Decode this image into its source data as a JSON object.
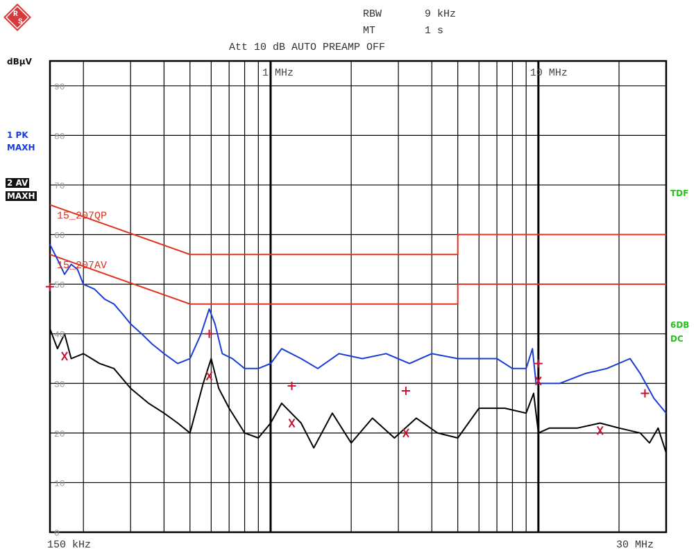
{
  "header": {
    "rbw_label": "RBW",
    "rbw_value": "9 kHz",
    "mt_label": "MT",
    "mt_value": "1 s",
    "att_line": "Att 10 dB AUTO  PREAMP OFF"
  },
  "left_labels": {
    "unit": "dBµV",
    "trace1_line1": "1 PK",
    "trace1_line2": "MAXH",
    "trace2_line1": "2 AV",
    "trace2_line2": "MAXH"
  },
  "right_labels": {
    "tdf": "TDF",
    "sixdb": "6DB",
    "dc": "DC"
  },
  "colors": {
    "peak_trace": "#1a3bd6",
    "avg_trace": "#000000",
    "limits": "#e0301e",
    "markers": "#c8102e",
    "right_labels": "#27c21a"
  },
  "chart_data": {
    "type": "line",
    "x_scale": "log",
    "xlim_hz": [
      150000,
      30000000
    ],
    "ylim": [
      0,
      95
    ],
    "y_ticks": [
      0,
      10,
      20,
      30,
      40,
      50,
      60,
      70,
      80,
      90
    ],
    "y_tick_labels": [
      "0",
      "10",
      "20",
      "30",
      "40",
      "50",
      "60",
      "70",
      "80",
      "90"
    ],
    "x_tick_labels": [
      {
        "hz": 1000000,
        "label": "1 MHz"
      },
      {
        "hz": 10000000,
        "label": "10 MHz"
      }
    ],
    "x_start_label": "150 kHz",
    "x_end_label": "30 MHz",
    "grid": true,
    "limit_lines": [
      {
        "name": "15_207QP",
        "points": [
          [
            150000,
            66
          ],
          [
            500000,
            56
          ],
          [
            5000000,
            56
          ],
          [
            5000000,
            60
          ],
          [
            30000000,
            60
          ]
        ]
      },
      {
        "name": "15_207AV",
        "points": [
          [
            150000,
            56
          ],
          [
            500000,
            46
          ],
          [
            5000000,
            46
          ],
          [
            5000000,
            50
          ],
          [
            30000000,
            50
          ]
        ]
      }
    ],
    "series": [
      {
        "name": "1 PK MAXH",
        "color": "#1a3bd6",
        "points": [
          [
            150000,
            58
          ],
          [
            160000,
            55
          ],
          [
            170000,
            52
          ],
          [
            180000,
            54
          ],
          [
            190000,
            53
          ],
          [
            200000,
            50
          ],
          [
            220000,
            49
          ],
          [
            240000,
            47
          ],
          [
            260000,
            46
          ],
          [
            280000,
            44
          ],
          [
            300000,
            42
          ],
          [
            330000,
            40
          ],
          [
            360000,
            38
          ],
          [
            400000,
            36
          ],
          [
            450000,
            34
          ],
          [
            500000,
            35
          ],
          [
            550000,
            40
          ],
          [
            590000,
            45
          ],
          [
            620000,
            42
          ],
          [
            660000,
            36
          ],
          [
            720000,
            35
          ],
          [
            800000,
            33
          ],
          [
            900000,
            33
          ],
          [
            1000000,
            34
          ],
          [
            1100000,
            37
          ],
          [
            1300000,
            35
          ],
          [
            1500000,
            33
          ],
          [
            1800000,
            36
          ],
          [
            2200000,
            35
          ],
          [
            2700000,
            36
          ],
          [
            3300000,
            34
          ],
          [
            4000000,
            36
          ],
          [
            5000000,
            35
          ],
          [
            6000000,
            35
          ],
          [
            7000000,
            35
          ],
          [
            8000000,
            33
          ],
          [
            9000000,
            33
          ],
          [
            9500000,
            37
          ],
          [
            9800000,
            30
          ],
          [
            10500000,
            30
          ],
          [
            12000000,
            30
          ],
          [
            15000000,
            32
          ],
          [
            18000000,
            33
          ],
          [
            22000000,
            35
          ],
          [
            24000000,
            32
          ],
          [
            27000000,
            27
          ],
          [
            30000000,
            24
          ]
        ]
      },
      {
        "name": "2 AV MAXH",
        "color": "#000000",
        "points": [
          [
            150000,
            41
          ],
          [
            160000,
            37
          ],
          [
            170000,
            40
          ],
          [
            180000,
            35
          ],
          [
            200000,
            36
          ],
          [
            230000,
            34
          ],
          [
            260000,
            33
          ],
          [
            300000,
            29
          ],
          [
            350000,
            26
          ],
          [
            400000,
            24
          ],
          [
            450000,
            22
          ],
          [
            500000,
            20
          ],
          [
            560000,
            30
          ],
          [
            600000,
            35
          ],
          [
            640000,
            29
          ],
          [
            700000,
            25
          ],
          [
            800000,
            20
          ],
          [
            900000,
            19
          ],
          [
            1000000,
            22
          ],
          [
            1100000,
            26
          ],
          [
            1300000,
            22
          ],
          [
            1450000,
            17
          ],
          [
            1700000,
            24
          ],
          [
            2000000,
            18
          ],
          [
            2400000,
            23
          ],
          [
            2900000,
            19
          ],
          [
            3500000,
            23
          ],
          [
            4200000,
            20
          ],
          [
            5000000,
            19
          ],
          [
            6000000,
            25
          ],
          [
            7500000,
            25
          ],
          [
            9000000,
            24
          ],
          [
            9600000,
            28
          ],
          [
            10000000,
            20
          ],
          [
            11000000,
            21
          ],
          [
            14000000,
            21
          ],
          [
            17000000,
            22
          ],
          [
            20000000,
            21
          ],
          [
            24000000,
            20
          ],
          [
            26000000,
            18
          ],
          [
            28000000,
            21
          ],
          [
            30000000,
            16
          ]
        ]
      }
    ],
    "markers": [
      {
        "type": "+",
        "x": 150000,
        "y": 49.5
      },
      {
        "type": "+",
        "x": 590000,
        "y": 40
      },
      {
        "type": "+",
        "x": 1200000,
        "y": 29.5
      },
      {
        "type": "+",
        "x": 3200000,
        "y": 28.5
      },
      {
        "type": "+",
        "x": 10000000,
        "y": 34
      },
      {
        "type": "+",
        "x": 25000000,
        "y": 28
      },
      {
        "type": "X",
        "x": 170000,
        "y": 35.5
      },
      {
        "type": "X",
        "x": 590000,
        "y": 31.5
      },
      {
        "type": "X",
        "x": 1200000,
        "y": 22
      },
      {
        "type": "X",
        "x": 3200000,
        "y": 20
      },
      {
        "type": "X",
        "x": 10000000,
        "y": 30.5
      },
      {
        "type": "X",
        "x": 17000000,
        "y": 20.5
      }
    ]
  }
}
